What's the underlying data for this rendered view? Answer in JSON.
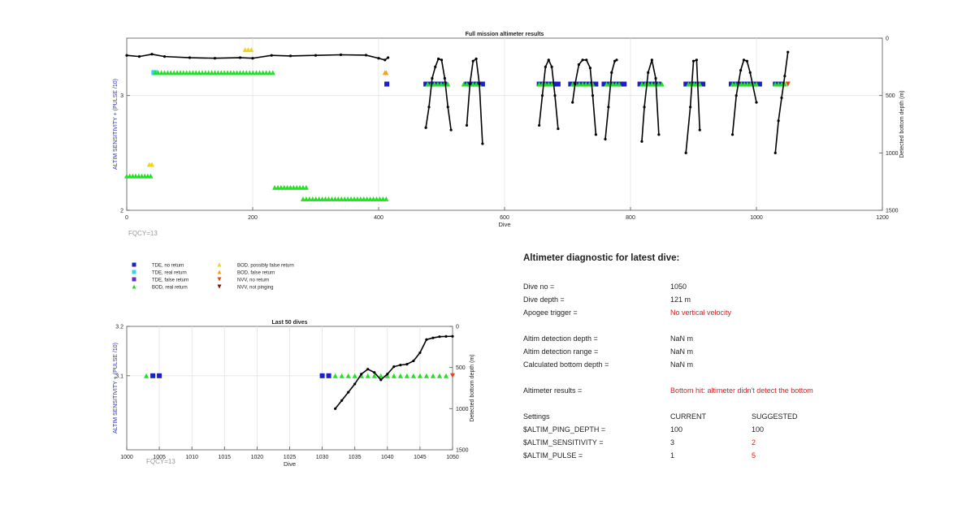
{
  "colors": {
    "tde_no_return": "#1f1fc8",
    "tde_real_return": "#33d6e8",
    "tde_false_return": "#6a2bc0",
    "bod_real_return": "#22e022",
    "bod_possibly_false": "#f2d21a",
    "bod_false_return": "#f5a21a",
    "nvv_no_return": "#e04a1a",
    "nvv_not_pinging": "#7a1212",
    "trace": "#000000",
    "left_axis_label": "#3030c0",
    "fqcy_text": "#999999",
    "warning_text": "#d92020"
  },
  "legend": {
    "items": [
      {
        "label": "TDE, no return",
        "marker": "square",
        "color": "#1f1fc8"
      },
      {
        "label": "TDE, real return",
        "marker": "square",
        "color": "#33d6e8"
      },
      {
        "label": "TDE, false return",
        "marker": "square",
        "color": "#6a2bc0"
      },
      {
        "label": "BOD, real return",
        "marker": "triangle-up",
        "color": "#22e022"
      },
      {
        "label": "BOD, possibly false return",
        "marker": "triangle-up",
        "color": "#f2d21a"
      },
      {
        "label": "BOD, false return",
        "marker": "triangle-up",
        "color": "#f5a21a"
      },
      {
        "label": "NVV, no return",
        "marker": "triangle-down",
        "color": "#e04a1a"
      },
      {
        "label": "NVV, not pinging",
        "marker": "triangle-down",
        "color": "#7a1212"
      }
    ]
  },
  "chart_data": [
    {
      "type": "scatter",
      "title": "Full mission altimeter results",
      "xlabel": "Dive",
      "ylabel_left": "ALTIM SENSITIVITY + (PULSE /10)",
      "ylabel_right": "Detected bottom depth (m)",
      "xlim": [
        0,
        1200
      ],
      "ylim_left": [
        2,
        3.5
      ],
      "ylim_right": [
        0,
        1500
      ],
      "right_axis_reversed": true,
      "xticks": [
        0,
        200,
        400,
        600,
        800,
        1000,
        1200
      ],
      "yticks_left": [
        2,
        3
      ],
      "yticks_right": [
        0,
        500,
        1000,
        1500
      ],
      "grid": true,
      "annotation": "FQCY=13",
      "marker_groups": [
        {
          "name": "TDE, no return",
          "marker": "square",
          "color": "#1f1fc8",
          "y": 3.1,
          "ranges": [
            [
              413,
              413
            ],
            [
              475,
              505
            ],
            [
              540,
              565
            ],
            [
              655,
              685
            ],
            [
              705,
              745
            ],
            [
              758,
              790
            ],
            [
              815,
              845
            ],
            [
              888,
              915
            ],
            [
              960,
              1005
            ],
            [
              1030,
              1040
            ]
          ]
        },
        {
          "name": "TDE, real return",
          "marker": "square",
          "color": "#33d6e8",
          "y": 3.2,
          "ranges": [
            [
              43,
              45
            ]
          ]
        },
        {
          "name": "BOD, real return",
          "marker": "triangle-up",
          "color": "#22e022",
          "y": 3.2,
          "ranges": [
            [
              45,
              185
            ]
          ]
        },
        {
          "name": "BOD, real return",
          "marker": "triangle-up",
          "color": "#22e022",
          "y": 3.1,
          "ranges": [
            [
              478,
              510
            ],
            [
              535,
              560
            ],
            [
              655,
              675
            ],
            [
              708,
              740
            ],
            [
              762,
              782
            ],
            [
              818,
              850
            ],
            [
              892,
              910
            ],
            [
              962,
              1000
            ],
            [
              1030,
              1045
            ]
          ]
        },
        {
          "name": "BOD, real return",
          "marker": "triangle-up",
          "color": "#22e022",
          "y": 3.2,
          "note": "upper row left",
          "ranges": [
            [
              190,
              232
            ]
          ]
        },
        {
          "name": "BOD, real return",
          "marker": "triangle-up",
          "color": "#22e022",
          "y": 2.3,
          "ranges": [
            [
              0,
              38
            ]
          ]
        },
        {
          "name": "BOD, real return",
          "marker": "triangle-up",
          "color": "#22e022",
          "y": 2.2,
          "ranges": [
            [
              235,
              285
            ]
          ]
        },
        {
          "name": "BOD, real return",
          "marker": "triangle-up",
          "color": "#22e022",
          "y": 2.1,
          "ranges": [
            [
              280,
              412
            ]
          ]
        },
        {
          "name": "BOD, possibly false return",
          "marker": "triangle-up",
          "color": "#f2d21a",
          "y": 2.4,
          "ranges": [
            [
              36,
              40
            ]
          ]
        },
        {
          "name": "BOD, possibly false return",
          "marker": "triangle-up",
          "color": "#f2d21a",
          "y": 3.4,
          "ranges": [
            [
              188,
              198
            ]
          ]
        },
        {
          "name": "BOD, false return",
          "marker": "triangle-up",
          "color": "#f5a21a",
          "y": 3.2,
          "ranges": [
            [
              410,
              412
            ]
          ]
        },
        {
          "name": "NVV, no return",
          "marker": "triangle-down",
          "color": "#e04a1a",
          "y": 3.1,
          "ranges": [
            [
              1050,
              1050
            ]
          ]
        }
      ],
      "depth_trace": {
        "flat_segment": {
          "x": [
            0,
            20,
            40,
            60,
            100,
            140,
            180,
            200,
            230,
            260,
            300,
            340,
            380,
            400,
            410,
            415
          ],
          "y": [
            150,
            160,
            140,
            160,
            170,
            175,
            170,
            175,
            150,
            155,
            150,
            145,
            148,
            175,
            190,
            170
          ]
        },
        "dives": [
          {
            "x": [
              475,
              480,
              485,
              490,
              495,
              500,
              505,
              510,
              515
            ],
            "y": [
              780,
              600,
              350,
              250,
              180,
              190,
              350,
              600,
              800
            ]
          },
          {
            "x": [
              540,
              545,
              550,
              555,
              560,
              565
            ],
            "y": [
              760,
              400,
              200,
              180,
              400,
              920
            ]
          },
          {
            "x": [
              655,
              660,
              665,
              670,
              675,
              680,
              685
            ],
            "y": [
              760,
              500,
              250,
              190,
              250,
              500,
              790
            ]
          },
          {
            "x": [
              708,
              712,
              718,
              724,
              730,
              736,
              740,
              745
            ],
            "y": [
              560,
              400,
              230,
              190,
              190,
              260,
              500,
              840
            ]
          },
          {
            "x": [
              760,
              765,
              770,
              775,
              778
            ],
            "y": [
              880,
              600,
              300,
              200,
              190
            ]
          },
          {
            "x": [
              818,
              822,
              828,
              834,
              840,
              845
            ],
            "y": [
              900,
              600,
              300,
              190,
              350,
              840
            ]
          },
          {
            "x": [
              888,
              895,
              900,
              905,
              910
            ],
            "y": [
              1000,
              600,
              200,
              190,
              800
            ]
          },
          {
            "x": [
              962,
              968,
              975,
              980,
              985,
              990,
              1000
            ],
            "y": [
              840,
              500,
              280,
              190,
              200,
              300,
              560
            ]
          },
          {
            "x": [
              1030,
              1035,
              1040,
              1045,
              1050
            ],
            "y": [
              1000,
              720,
              520,
              330,
              121
            ]
          }
        ]
      }
    },
    {
      "type": "scatter",
      "title": "Last 50 dives",
      "xlabel": "Dive",
      "ylabel_left": "ALTIM SENSITIVITY + (PULSE /10)",
      "ylabel_right": "Detected bottom depth (m)",
      "xlim": [
        1000,
        1050
      ],
      "ylim_left": [
        2.95,
        3.2
      ],
      "ylim_right": [
        0,
        1500
      ],
      "right_axis_reversed": true,
      "xticks": [
        1000,
        1005,
        1010,
        1015,
        1020,
        1025,
        1030,
        1035,
        1040,
        1045,
        1050
      ],
      "yticks_left": [
        3.1,
        3.2
      ],
      "yticks_right": [
        0,
        500,
        1000,
        1500
      ],
      "grid": true,
      "annotation": "FQCY=13",
      "markers": [
        {
          "name": "BOD, real return",
          "marker": "triangle-up",
          "color": "#22e022",
          "x": [
            1003,
            1032,
            1033,
            1034,
            1035,
            1036,
            1037,
            1038,
            1039,
            1040,
            1041,
            1042,
            1043,
            1044,
            1045,
            1046,
            1047,
            1048,
            1049
          ],
          "y": 3.1
        },
        {
          "name": "TDE, no return",
          "marker": "square",
          "color": "#1f1fc8",
          "x": [
            1004,
            1005,
            1030,
            1031
          ],
          "y": 3.1
        },
        {
          "name": "NVV, no return",
          "marker": "triangle-down",
          "color": "#e04a1a",
          "x": [
            1050
          ],
          "y": 3.1
        }
      ],
      "depth_trace": {
        "x": [
          1032,
          1033,
          1034,
          1035,
          1036,
          1037,
          1038,
          1039,
          1040,
          1041,
          1042,
          1043,
          1044,
          1045,
          1046,
          1047,
          1048,
          1049,
          1050
        ],
        "y": [
          1000,
          900,
          800,
          700,
          580,
          520,
          560,
          650,
          580,
          490,
          470,
          460,
          420,
          320,
          160,
          140,
          125,
          122,
          121
        ]
      }
    }
  ],
  "diagnostic": {
    "title": "Altimeter diagnostic for latest dive:",
    "dive_no_label": "Dive no =",
    "dive_no": "1050",
    "dive_depth_label": "Dive depth =",
    "dive_depth": "121 m",
    "apogee_label": "Apogee trigger =",
    "apogee": "No vertical velocity",
    "det_depth_label": "Altim detection depth =",
    "det_depth": "NaN m",
    "det_range_label": "Altim detection range =",
    "det_range": "NaN m",
    "calc_bottom_label": "Calculated bottom depth =",
    "calc_bottom": "NaN m",
    "results_label": "Altimeter results =",
    "results": "Bottom hit: altimeter didn't detect the bottom",
    "settings_label": "Settings",
    "current_label": "CURRENT",
    "suggested_label": "SUGGESTED",
    "settings": [
      {
        "name": "$ALTIM_PING_DEPTH =",
        "current": "100",
        "suggested": "100",
        "changed": false
      },
      {
        "name": "$ALTIM_SENSITIVITY =",
        "current": "3",
        "suggested": "2",
        "changed": true
      },
      {
        "name": "$ALTIM_PULSE =",
        "current": "1",
        "suggested": "5",
        "changed": true
      }
    ]
  }
}
